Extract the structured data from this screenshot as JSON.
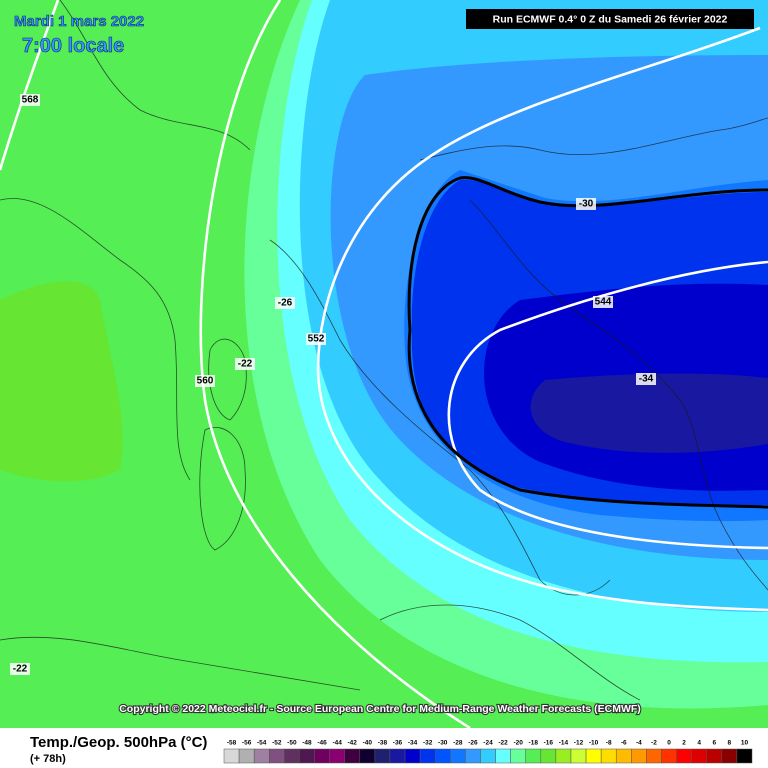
{
  "header": {
    "date": "Mardi 1 mars 2022",
    "time": "7:00 locale",
    "run": "Run ECMWF 0.4° 0 Z du Samedi 26 février 2022"
  },
  "contour_labels": [
    "568",
    "-26",
    "552",
    "-22",
    "560",
    "-30",
    "544",
    "-34",
    "-22"
  ],
  "copyright": "Copyright © 2022 Meteociel.fr - Source European Centre for Medium-Range Weather Forecasts (ECMWF)",
  "legend": {
    "title": "Temp./Geop. 500hPa (°C)",
    "lead": "(+ 78h)",
    "labels": [
      -58,
      -56,
      -54,
      -52,
      -50,
      -48,
      -46,
      -44,
      -42,
      -40,
      -38,
      -36,
      -34,
      -32,
      -30,
      -28,
      -26,
      -24,
      -22,
      -20,
      -18,
      -16,
      -14,
      -12,
      -10,
      -8,
      -6,
      -4,
      -2,
      0,
      2,
      4,
      6,
      8,
      10
    ],
    "colors": [
      "#d8d8d8",
      "#b0b0b0",
      "#a080a0",
      "#805080",
      "#603060",
      "#501850",
      "#700060",
      "#8a0070",
      "#400040",
      "#100030",
      "#202070",
      "#1818a0",
      "#0000cc",
      "#0033ee",
      "#0055ff",
      "#1177ff",
      "#3399ff",
      "#33ccff",
      "#66ffff",
      "#66ff99",
      "#55ee55",
      "#66e633",
      "#99ee22",
      "#ccff33",
      "#ffff00",
      "#ffdd00",
      "#ffbb00",
      "#ff9900",
      "#ff6600",
      "#ff3300",
      "#ff0000",
      "#dd0000",
      "#bb0000",
      "#880000",
      "#000000"
    ]
  }
}
